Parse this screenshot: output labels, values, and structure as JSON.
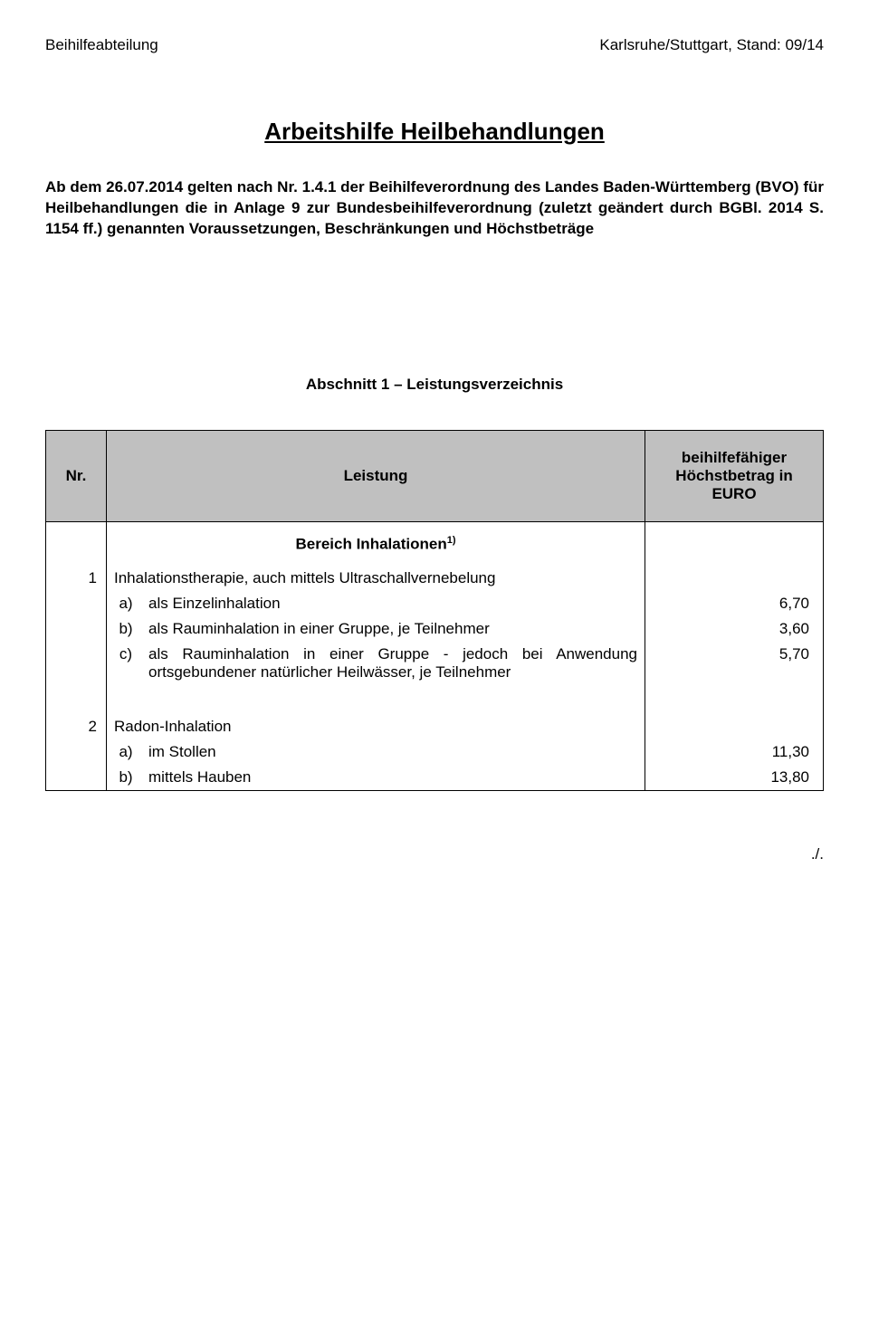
{
  "header": {
    "left": "Beihilfeabteilung",
    "right": "Karlsruhe/Stuttgart, Stand: 09/14"
  },
  "title": "Arbeitshilfe Heilbehandlungen",
  "intro": {
    "bold_lead": "Ab dem 26.07.2014 gelten nach Nr. 1.4.1 der Beihilfeverordnung des Landes Baden-Württemberg (BVO) für Heilbehandlungen die in Anlage 9 zur Bundesbeihilfeverordnung (zuletzt geändert durch BGBl. 2014 S. 1154 ff.) genannten Voraussetzungen, Beschränkungen und Höchstbeträge"
  },
  "section_heading": "Abschnitt 1 – Leistungsverzeichnis",
  "table": {
    "head": {
      "nr": "Nr.",
      "leistung": "Leistung",
      "betrag": "beihilfefähiger Höchstbetrag in EURO"
    },
    "bereich": "Bereich Inhalationen",
    "bereich_sup": "1)",
    "row1": {
      "nr": "1",
      "text": "Inhalationstherapie, auch mittels Ultraschallvernebelung",
      "a_label": "a)",
      "a_text": "als Einzelinhalation",
      "a_val": "6,70",
      "b_label": "b)",
      "b_text": "als Rauminhalation in einer Gruppe, je Teilnehmer",
      "b_val": "3,60",
      "c_label": "c)",
      "c_text": "als Rauminhalation in einer Gruppe - jedoch bei Anwendung ortsgebundener natürlicher Heilwässer, je Teilnehmer",
      "c_val": "5,70"
    },
    "row2": {
      "nr": "2",
      "text": "Radon-Inhalation",
      "a_label": "a)",
      "a_text": "im Stollen",
      "a_val": "11,30",
      "b_label": "b)",
      "b_text": "mittels Hauben",
      "b_val": "13,80"
    }
  },
  "footer": "./."
}
